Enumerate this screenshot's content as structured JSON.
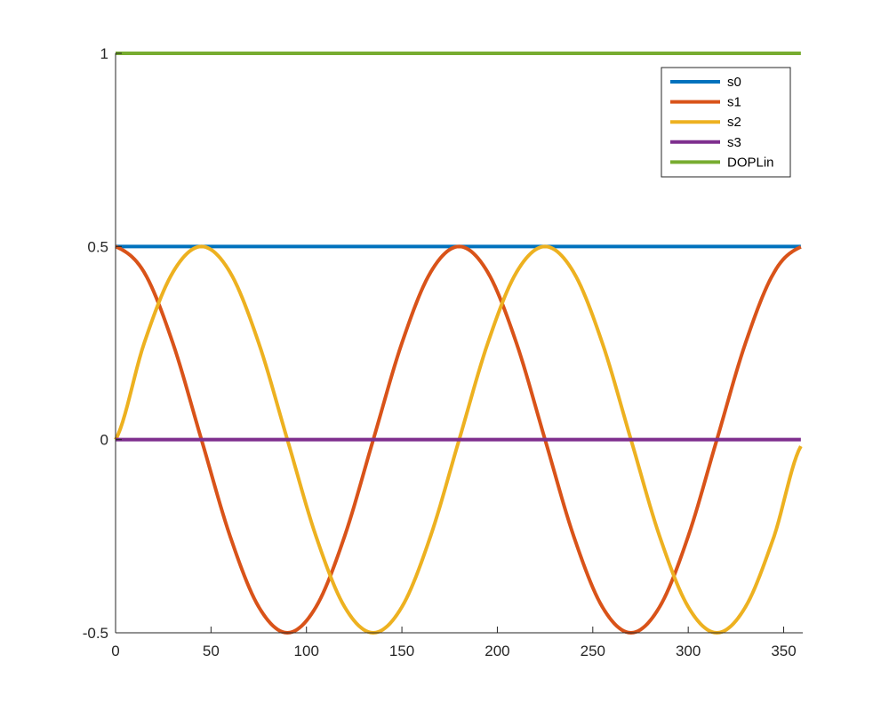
{
  "chart_data": {
    "type": "line",
    "xlim": [
      0,
      360
    ],
    "ylim": [
      -0.5,
      1
    ],
    "x_ticks": [
      0,
      50,
      100,
      150,
      200,
      250,
      300,
      350
    ],
    "y_ticks": [
      -0.5,
      0,
      0.5,
      1
    ],
    "x_tick_labels": [
      "0",
      "50",
      "100",
      "150",
      "200",
      "250",
      "300",
      "350"
    ],
    "y_tick_labels": [
      "-0.5",
      "0",
      "0.5",
      "1"
    ],
    "grid": false,
    "legend_position": "top-right",
    "x": [
      0,
      15,
      30,
      45,
      60,
      75,
      90,
      105,
      120,
      135,
      150,
      165,
      180,
      195,
      210,
      225,
      240,
      255,
      270,
      285,
      300,
      315,
      330,
      345,
      359
    ],
    "series": [
      {
        "name": "s0",
        "color": "#0072BD",
        "values": [
          0.5,
          0.5,
          0.5,
          0.5,
          0.5,
          0.5,
          0.5,
          0.5,
          0.5,
          0.5,
          0.5,
          0.5,
          0.5,
          0.5,
          0.5,
          0.5,
          0.5,
          0.5,
          0.5,
          0.5,
          0.5,
          0.5,
          0.5,
          0.5,
          0.5
        ]
      },
      {
        "name": "s1",
        "color": "#D95319",
        "values": [
          0.5,
          0.433,
          0.25,
          0.0,
          -0.25,
          -0.433,
          -0.5,
          -0.433,
          -0.25,
          0.0,
          0.25,
          0.433,
          0.5,
          0.433,
          0.25,
          0.0,
          -0.25,
          -0.433,
          -0.5,
          -0.433,
          -0.25,
          0.0,
          0.25,
          0.433,
          0.499
        ]
      },
      {
        "name": "s2",
        "color": "#EDB120",
        "values": [
          0.0,
          0.25,
          0.433,
          0.5,
          0.433,
          0.25,
          0.0,
          -0.25,
          -0.433,
          -0.5,
          -0.433,
          -0.25,
          0.0,
          0.25,
          0.433,
          0.5,
          0.433,
          0.25,
          0.0,
          -0.25,
          -0.433,
          -0.5,
          -0.433,
          -0.25,
          -0.017
        ]
      },
      {
        "name": "s3",
        "color": "#7E2F8E",
        "values": [
          0,
          0,
          0,
          0,
          0,
          0,
          0,
          0,
          0,
          0,
          0,
          0,
          0,
          0,
          0,
          0,
          0,
          0,
          0,
          0,
          0,
          0,
          0,
          0,
          0
        ]
      },
      {
        "name": "DOPLin",
        "color": "#77AC30",
        "values": [
          1,
          1,
          1,
          1,
          1,
          1,
          1,
          1,
          1,
          1,
          1,
          1,
          1,
          1,
          1,
          1,
          1,
          1,
          1,
          1,
          1,
          1,
          1,
          1,
          1
        ]
      }
    ]
  }
}
